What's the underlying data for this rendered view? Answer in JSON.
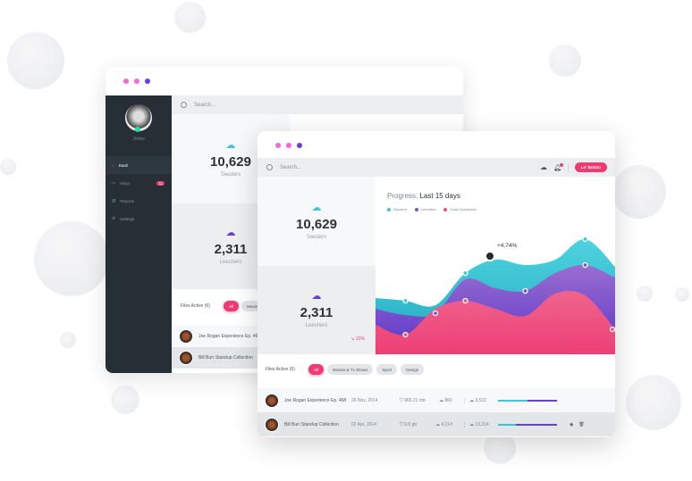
{
  "back_window": {
    "user": {
      "name": "Jimbo"
    },
    "nav": [
      {
        "label": "Dash",
        "icon": "gauge-icon",
        "active": true
      },
      {
        "label": "Inbox",
        "icon": "inbox-icon",
        "badge": "11"
      },
      {
        "label": "Reports",
        "icon": "chart-icon"
      },
      {
        "label": "Settings",
        "icon": "gear-icon"
      }
    ],
    "search_placeholder": "Search...",
    "seeders": {
      "value": "10,629",
      "label": "Seeders"
    },
    "leechers": {
      "value": "2,311",
      "label": "Leechers"
    },
    "files_title": "Files Active (6)",
    "filters": [
      "All",
      "Movies"
    ],
    "rows": [
      "Joe Rogan Experience Ep. 468",
      "Bill Burr Standup Collection"
    ]
  },
  "front_window": {
    "search_placeholder": "Search...",
    "button_label": "Le' Button",
    "seeders": {
      "value": "10,629",
      "label": "Seeders"
    },
    "leechers": {
      "value": "2,311",
      "label": "Leechers",
      "change": "12%"
    },
    "files_title": "Files Active (6)",
    "filters": [
      "All",
      "Movies & Tv Shows",
      "Sport",
      "Design"
    ],
    "rows": [
      {
        "name": "Joe Rogan Experience Ep. 468",
        "date": "26 Nov, 2014",
        "size": "965.21 mb",
        "down": "860",
        "up": "3,522",
        "progress": 0.5
      },
      {
        "name": "Bill Burr Standup Collection",
        "date": "02 Apr, 2014",
        "size": "9.8 gb",
        "down": "4,214",
        "up": "19,314",
        "progress": 0.3
      }
    ]
  },
  "chart_data": {
    "type": "area",
    "title_prefix": "Progress:",
    "title": "Last 15 days",
    "legend_position": "top-left",
    "annotation": "+4.74%",
    "x": [
      1,
      2,
      3,
      4,
      5,
      6,
      7,
      8,
      9
    ],
    "series": [
      {
        "name": "Seeders",
        "color": "#3ec6d8",
        "values": [
          63,
          60,
          55,
          91,
          106,
          100,
          106,
          129,
          98
        ]
      },
      {
        "name": "Leechers",
        "color": "#7a52c7",
        "values": [
          51,
          44,
          46,
          84,
          74,
          71,
          91,
          100,
          86
        ]
      },
      {
        "name": "Total Downloads",
        "color": "#ef4f7f",
        "values": [
          33,
          22,
          51,
          60,
          51,
          43,
          68,
          66,
          28
        ]
      }
    ],
    "grid": false
  },
  "colors": {
    "accent": "#ee3b72",
    "sidebar": "#262f36",
    "cyan": "#3ec6d8",
    "purple": "#6a3fd6"
  }
}
